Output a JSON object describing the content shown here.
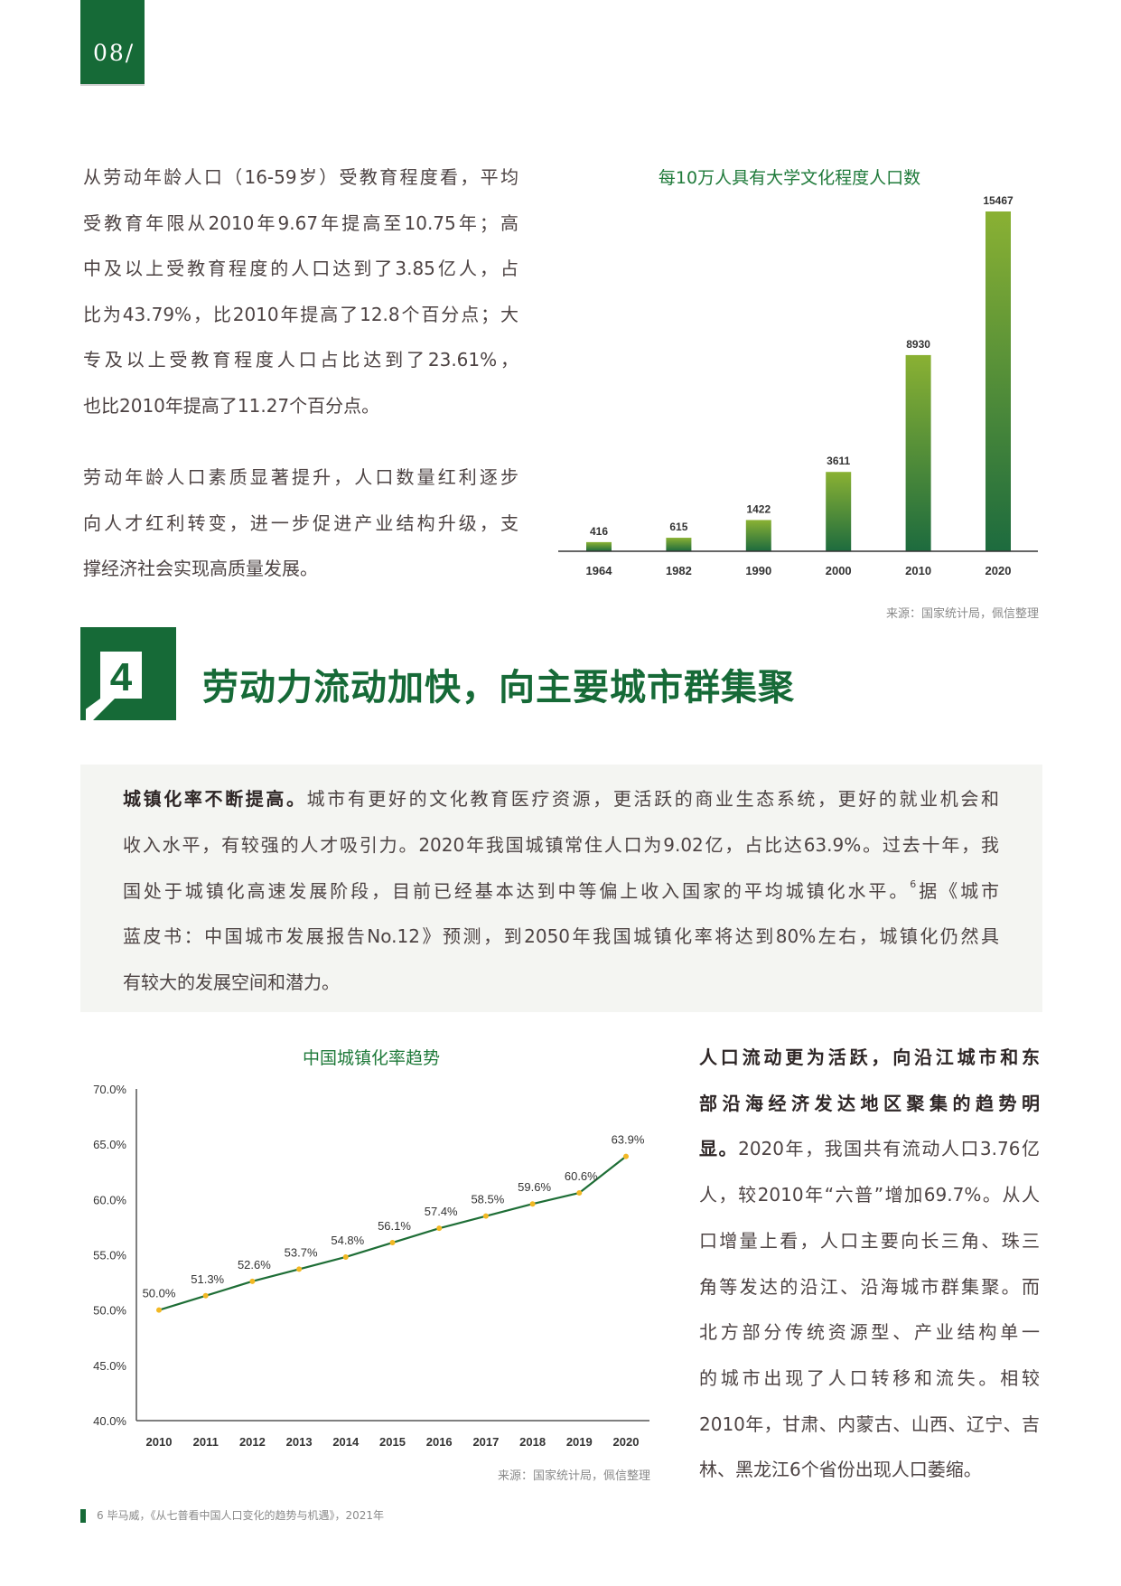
{
  "page_number": "08/",
  "colors": {
    "brand_green": "#166a37",
    "bar_top": "#8ab133",
    "bar_bottom": "#1d6b3e",
    "line": "#1e6e36",
    "marker": "#f2b824",
    "box_bg": "#f4f5f2"
  },
  "intro": {
    "para1": [
      "从劳动年龄人口（16-59岁）受教育程度看，平均",
      "受教育年限从2010年9.67年提高至10.75年；高",
      "中及以上受教育程度的人口达到了3.85亿人，占",
      "比为43.79%，比2010年提高了12.8个百分点；大",
      "专及以上受教育程度人口占比达到了23.61%，",
      "也比2010年提高了11.27个百分点。"
    ],
    "para2": [
      "劳动年龄人口素质显著提升，人口数量红利逐步",
      "向人才红利转变，进一步促进产业结构升级，支",
      "撑经济社会实现高质量发展。"
    ]
  },
  "chart_data": [
    {
      "type": "bar",
      "title": "每10万人具有大学文化程度人口数",
      "categories": [
        "1964",
        "1982",
        "1990",
        "2000",
        "2010",
        "2020"
      ],
      "values": [
        416,
        615,
        1422,
        3611,
        8930,
        15467
      ],
      "value_labels": [
        "416",
        "615",
        "1422",
        "3611",
        "8930",
        "15467"
      ],
      "ylim": [
        0,
        15467
      ],
      "grid": false,
      "source": "来源：国家统计局，佩信整理"
    },
    {
      "type": "line",
      "title": "中国城镇化率趋势",
      "categories": [
        "2010",
        "2011",
        "2012",
        "2013",
        "2014",
        "2015",
        "2016",
        "2017",
        "2018",
        "2019",
        "2020"
      ],
      "values": [
        50.0,
        51.3,
        52.6,
        53.7,
        54.8,
        56.1,
        57.4,
        58.5,
        59.6,
        60.6,
        63.9
      ],
      "value_labels": [
        "50.0%",
        "51.3%",
        "52.6%",
        "53.7%",
        "54.8%",
        "56.1%",
        "57.4%",
        "58.5%",
        "59.6%",
        "60.6%",
        "63.9%"
      ],
      "yticks": [
        "70.0%",
        "65.0%",
        "60.0%",
        "55.0%",
        "50.0%",
        "45.0%",
        "40.0%"
      ],
      "ylim": [
        40,
        70
      ],
      "grid": false,
      "source": "来源：国家统计局，佩信整理"
    }
  ],
  "section": {
    "number": "4",
    "title": "劳动力流动加快，向主要城市群集聚"
  },
  "box": {
    "lead": "城镇化率不断提高。",
    "line0_rest": "城市有更好的文化教育医疗资源，更活跃的商业生态系统，更好的就业机会和",
    "line1": "收入水平，有较强的人才吸引力。2020年我国城镇常住人口为9.02亿，占比达63.9%。过去十年，我",
    "line2_a": "国处于城镇化高速发展阶段，目前已经基本达到中等偏上收入国家的平均城镇化水平。",
    "line2_sup": "6",
    "line2_b": "据《城市",
    "line3": "蓝皮书：中国城市发展报告No.12》预测，到2050年我国城镇化率将达到80%左右，城镇化仍然具",
    "line4": "有较大的发展空间和潜力。"
  },
  "right": {
    "bold_lines": [
      "人口流动更为活跃，向沿江城市和东",
      "部沿海经济发达地区聚集的趋势明"
    ],
    "line2_bold": "显。",
    "line2_rest": "2020年，我国共有流动人口3.76亿",
    "lines": [
      "人，较2010年“六普”增加69.7%。从人",
      "口增量上看，人口主要向长三角、珠三",
      "角等发达的沿江、沿海城市群集聚。而",
      "北方部分传统资源型、产业结构单一",
      "的城市出现了人口转移和流失。相较",
      "2010年，甘肃、内蒙古、山西、辽宁、吉",
      "林、黑龙江6个省份出现人口萎缩。"
    ]
  },
  "footnote": "6  毕马威，《从七普看中国人口变化的趋势与机遇》，2021年"
}
